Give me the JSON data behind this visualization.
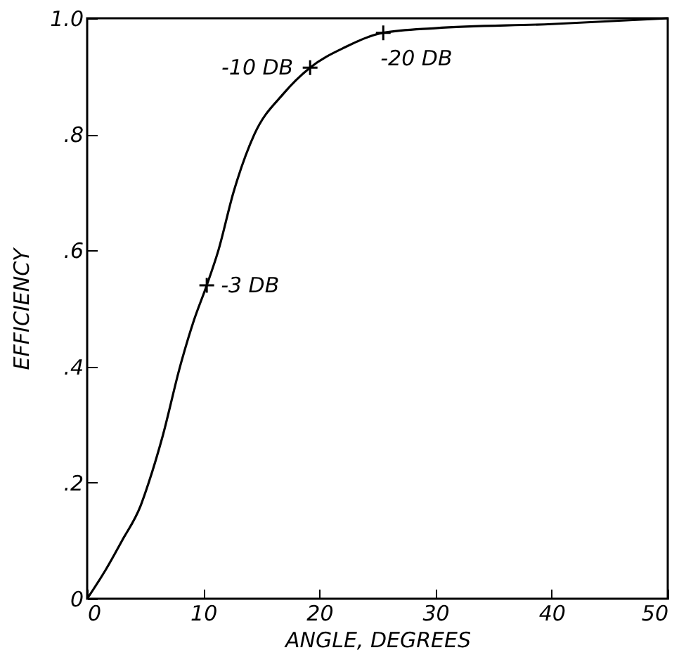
{
  "chart_data": {
    "type": "line",
    "xlabel": "ANGLE, DEGREES",
    "ylabel": "EFFICIENCY",
    "x": [
      0,
      1.6,
      3.0,
      4.6,
      5.3,
      6.5,
      8.0,
      9.2,
      10.3,
      11.3,
      12.6,
      14.4,
      16.9,
      19.2,
      22.2,
      25.5,
      30,
      40,
      50
    ],
    "series": [
      {
        "color": "#000000",
        "values": [
          0,
          0.05,
          0.1,
          0.16,
          0.2,
          0.28,
          0.4,
          0.48,
          0.54,
          0.6,
          0.7,
          0.8,
          0.87,
          0.915,
          0.95,
          0.975,
          0.983,
          0.99,
          1.0
        ]
      }
    ],
    "xlim": [
      0,
      50
    ],
    "xticks": [
      0,
      10,
      20,
      30,
      40,
      50
    ],
    "ylim": [
      0,
      1.0
    ],
    "yticks": [
      {
        "value": 0,
        "label": "0"
      },
      {
        "value": 0.2,
        "label": ".2"
      },
      {
        "value": 0.4,
        "label": ".4"
      },
      {
        "value": 0.6,
        "label": ".6"
      },
      {
        "value": 0.8,
        "label": ".8"
      },
      {
        "value": 1.0,
        "label": "1.0"
      }
    ],
    "annotations": [
      {
        "text": "-3 DB",
        "x": 10.3,
        "y": 0.54
      },
      {
        "text": "-10 DB",
        "x": 19.2,
        "y": 0.915
      },
      {
        "text": "-20 DB",
        "x": 25.5,
        "y": 0.975
      }
    ],
    "grid": false,
    "line_style": "solid"
  }
}
